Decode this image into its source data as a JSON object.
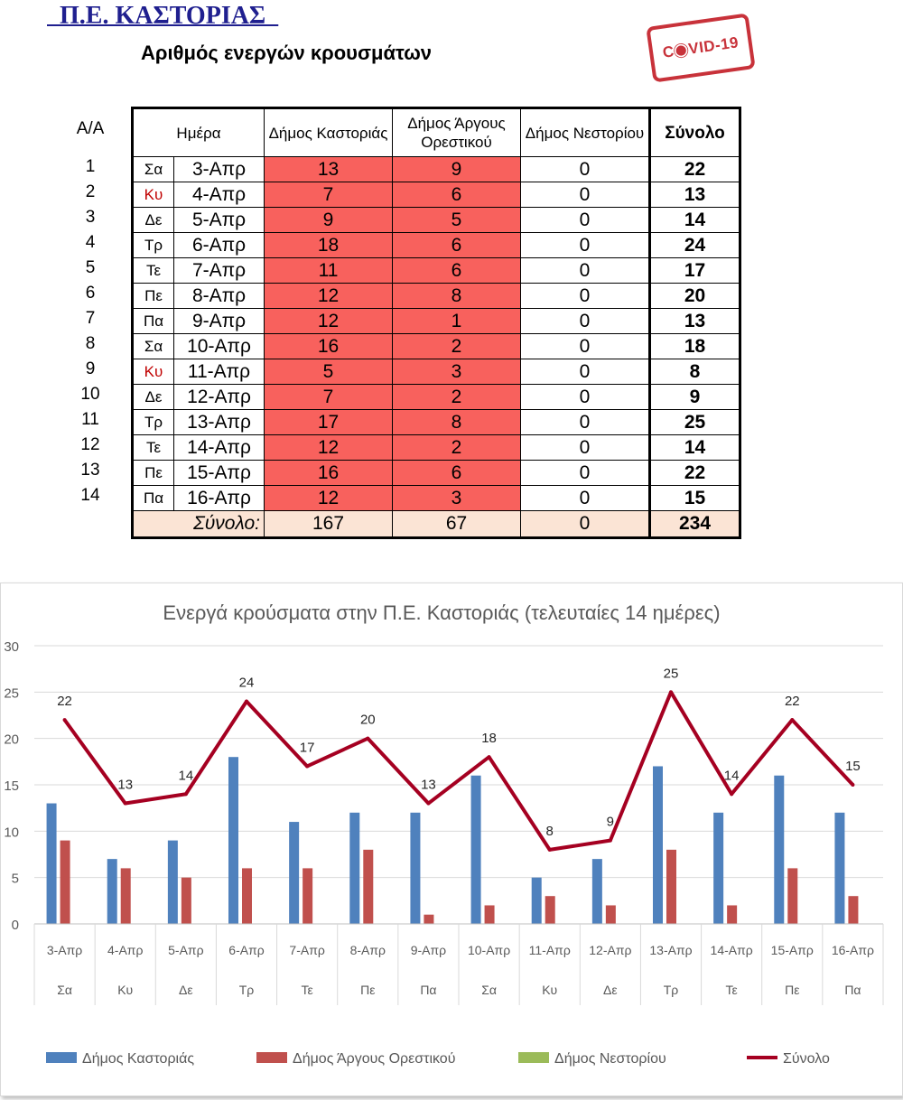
{
  "header": {
    "title": "  Π.Ε. ΚΑΣΤΟΡΙΑΣ  ",
    "subtitle": "Αριθμός ενεργών κρουσμάτων",
    "stamp_text_left": "C",
    "stamp_text_right": "VID-19"
  },
  "table": {
    "aa_label": "Α/Α",
    "headers": [
      "Ημέρα",
      "Δήμος Καστοριάς",
      "Δήμος Άργους Ορεστικού",
      "Δήμος Νεστορίου",
      "Σύνολο"
    ],
    "rows": [
      {
        "n": "1",
        "day": "Σα",
        "date": "3-Απρ",
        "kast": "13",
        "arg": "9",
        "nes": "0",
        "total": "22"
      },
      {
        "n": "2",
        "day": "Κυ",
        "date": "4-Απρ",
        "kast": "7",
        "arg": "6",
        "nes": "0",
        "total": "13"
      },
      {
        "n": "3",
        "day": "Δε",
        "date": "5-Απρ",
        "kast": "9",
        "arg": "5",
        "nes": "0",
        "total": "14"
      },
      {
        "n": "4",
        "day": "Τρ",
        "date": "6-Απρ",
        "kast": "18",
        "arg": "6",
        "nes": "0",
        "total": "24"
      },
      {
        "n": "5",
        "day": "Τε",
        "date": "7-Απρ",
        "kast": "11",
        "arg": "6",
        "nes": "0",
        "total": "17"
      },
      {
        "n": "6",
        "day": "Πε",
        "date": "8-Απρ",
        "kast": "12",
        "arg": "8",
        "nes": "0",
        "total": "20"
      },
      {
        "n": "7",
        "day": "Πα",
        "date": "9-Απρ",
        "kast": "12",
        "arg": "1",
        "nes": "0",
        "total": "13"
      },
      {
        "n": "8",
        "day": "Σα",
        "date": "10-Απρ",
        "kast": "16",
        "arg": "2",
        "nes": "0",
        "total": "18"
      },
      {
        "n": "9",
        "day": "Κυ",
        "date": "11-Απρ",
        "kast": "5",
        "arg": "3",
        "nes": "0",
        "total": "8"
      },
      {
        "n": "10",
        "day": "Δε",
        "date": "12-Απρ",
        "kast": "7",
        "arg": "2",
        "nes": "0",
        "total": "9"
      },
      {
        "n": "11",
        "day": "Τρ",
        "date": "13-Απρ",
        "kast": "17",
        "arg": "8",
        "nes": "0",
        "total": "25"
      },
      {
        "n": "12",
        "day": "Τε",
        "date": "14-Απρ",
        "kast": "12",
        "arg": "2",
        "nes": "0",
        "total": "14"
      },
      {
        "n": "13",
        "day": "Πε",
        "date": "15-Απρ",
        "kast": "16",
        "arg": "6",
        "nes": "0",
        "total": "22"
      },
      {
        "n": "14",
        "day": "Πα",
        "date": "16-Απρ",
        "kast": "12",
        "arg": "3",
        "nes": "0",
        "total": "15"
      }
    ],
    "totals": {
      "label": "Σύνολο:",
      "kast": "167",
      "arg": "67",
      "nes": "0",
      "total": "234"
    },
    "colors": {
      "header_bg": "#fbe4d5",
      "cell_red": "#f8615d",
      "sunday_text": "#c00000"
    }
  },
  "chart_data": {
    "type": "bar+line",
    "title": "Ενεργά κρούσματα στην Π.Ε. Καστοριάς (τελευταίες 14 ημέρες)",
    "categories": [
      "3-Απρ",
      "4-Απρ",
      "5-Απρ",
      "6-Απρ",
      "7-Απρ",
      "8-Απρ",
      "9-Απρ",
      "10-Απρ",
      "11-Απρ",
      "12-Απρ",
      "13-Απρ",
      "14-Απρ",
      "15-Απρ",
      "16-Απρ"
    ],
    "day_labels": [
      "Σα",
      "Κυ",
      "Δε",
      "Τρ",
      "Τε",
      "Πε",
      "Πα",
      "Σα",
      "Κυ",
      "Δε",
      "Τρ",
      "Τε",
      "Πε",
      "Πα"
    ],
    "ylim": [
      0,
      30
    ],
    "yticks": [
      0,
      5,
      10,
      15,
      20,
      25,
      30
    ],
    "ytick_labels": [
      "0",
      "5",
      "10",
      "15",
      "20",
      "25",
      "30"
    ],
    "series": [
      {
        "name": "Δήμος Καστοριάς",
        "type": "bar",
        "color": "#4f81bd",
        "values": [
          13,
          7,
          9,
          18,
          11,
          12,
          12,
          16,
          5,
          7,
          17,
          12,
          16,
          12
        ]
      },
      {
        "name": "Δήμος Άργους Ορεστικού",
        "type": "bar",
        "color": "#c0504d",
        "values": [
          9,
          6,
          5,
          6,
          6,
          8,
          1,
          2,
          3,
          2,
          8,
          2,
          6,
          3
        ]
      },
      {
        "name": "Δήμος Νεστορίου",
        "type": "bar",
        "color": "#9bbb59",
        "values": [
          0,
          0,
          0,
          0,
          0,
          0,
          0,
          0,
          0,
          0,
          0,
          0,
          0,
          0
        ]
      },
      {
        "name": "Σύνολο",
        "type": "line",
        "color": "#a50021",
        "values": [
          22,
          13,
          14,
          24,
          17,
          20,
          13,
          18,
          8,
          9,
          25,
          14,
          22,
          15
        ],
        "data_labels": true
      }
    ],
    "legend_position": "bottom",
    "grid": true
  }
}
